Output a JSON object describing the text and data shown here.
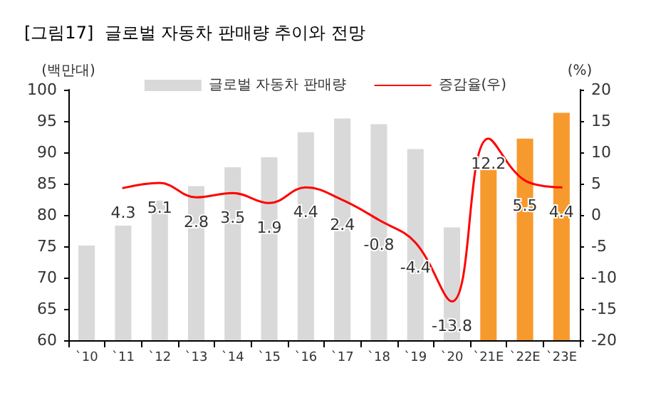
{
  "chart_data": {
    "type": "bar",
    "title": "[그림17]  글로벌 자동차 판매량 추이와 전망",
    "ylabel": "(백만대)",
    "y2label": "(%)",
    "categories": [
      "`10",
      "`11",
      "`12",
      "`13",
      "`14",
      "`15",
      "`16",
      "`17",
      "`18",
      "`19",
      "`20",
      "`21E",
      "`22E",
      "`23E"
    ],
    "series": [
      {
        "name": "글로벌 자동차 판매량",
        "color": "#d9d9d9",
        "colors": [
          "#d9d9d9",
          "#d9d9d9",
          "#d9d9d9",
          "#d9d9d9",
          "#d9d9d9",
          "#d9d9d9",
          "#d9d9d9",
          "#d9d9d9",
          "#d9d9d9",
          "#d9d9d9",
          "#d9d9d9",
          "#f79a2e",
          "#f79a2e",
          "#f79a2e"
        ],
        "values": [
          75.1,
          78.3,
          82.3,
          84.6,
          87.6,
          89.2,
          93.2,
          95.4,
          94.5,
          90.5,
          78.0,
          87.4,
          92.2,
          96.3
        ]
      },
      {
        "name": "증감율(우)",
        "type": "line",
        "axis": "y2",
        "color": "#ff0000",
        "values": [
          null,
          4.3,
          5.1,
          2.8,
          3.5,
          1.9,
          4.4,
          2.4,
          -0.8,
          -4.4,
          -13.8,
          12.2,
          5.5,
          4.4
        ],
        "value_labels": [
          null,
          "4.3",
          "5.1",
          "2.8",
          "3.5",
          "1.9",
          "4.4",
          "2.4",
          "-0.8",
          "-4.4",
          "-13.8",
          "12.2",
          "5.5",
          "4.4"
        ]
      }
    ],
    "ylim": [
      60,
      100
    ],
    "yticks": [
      60,
      65,
      70,
      75,
      80,
      85,
      90,
      95,
      100
    ],
    "y2lim": [
      -20,
      20
    ],
    "y2ticks": [
      -20,
      -15,
      -10,
      -5,
      0,
      5,
      10,
      15,
      20
    ],
    "grid": false,
    "legend": "top",
    "line_style": "solid"
  }
}
